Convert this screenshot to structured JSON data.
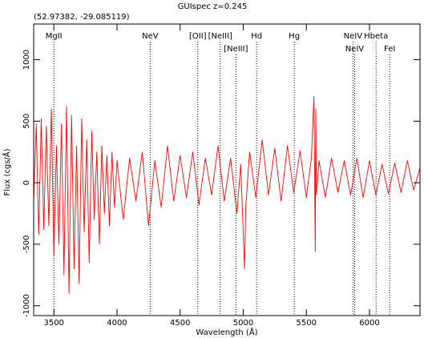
{
  "chart_data": {
    "type": "line",
    "title": "GUIspec z=0.245",
    "subtitle": "(52.97382, -29.085119)",
    "xlabel": "Wavelength (Å)",
    "ylabel": "Flux (cgs/Å)",
    "xlim": [
      3340,
      6400
    ],
    "ylim": [
      -1080,
      1290
    ],
    "x_ticks": [
      3500,
      4000,
      4500,
      5000,
      5500,
      6000
    ],
    "y_ticks": [
      -1000,
      -500,
      0,
      500,
      1000
    ],
    "series_color": "#ff0000",
    "series": [
      {
        "x": [
          3340,
          3360,
          3380,
          3400,
          3420,
          3440,
          3460,
          3480,
          3500,
          3520,
          3540,
          3560,
          3580,
          3600,
          3620,
          3640,
          3660,
          3680,
          3700,
          3720,
          3740,
          3760,
          3780,
          3800,
          3820,
          3840,
          3860,
          3880,
          3900,
          3920,
          3940,
          3960,
          3980,
          4000,
          4050,
          4100,
          4150,
          4200,
          4250,
          4300,
          4350,
          4400,
          4450,
          4500,
          4550,
          4600,
          4650,
          4700,
          4750,
          4800,
          4850,
          4900,
          4950,
          4980,
          5000,
          5010,
          5020,
          5050,
          5100,
          5150,
          5200,
          5250,
          5300,
          5350,
          5400,
          5450,
          5500,
          5540,
          5560,
          5570,
          5575,
          5580,
          5600,
          5650,
          5700,
          5750,
          5800,
          5850,
          5900,
          5950,
          6000,
          6050,
          6100,
          6150,
          6200,
          6250,
          6300,
          6350,
          6400
        ],
        "y": [
          -150,
          480,
          -420,
          520,
          -380,
          460,
          -350,
          600,
          -600,
          300,
          -500,
          480,
          -750,
          620,
          -900,
          550,
          -700,
          300,
          -820,
          520,
          -400,
          350,
          -650,
          420,
          -300,
          250,
          -500,
          300,
          -250,
          220,
          -350,
          250,
          -200,
          180,
          -300,
          200,
          -150,
          250,
          -350,
          180,
          -200,
          300,
          -150,
          220,
          -120,
          250,
          -180,
          200,
          -100,
          300,
          -150,
          200,
          -250,
          150,
          -400,
          -700,
          -200,
          250,
          -120,
          350,
          -100,
          280,
          -150,
          300,
          -80,
          260,
          -120,
          200,
          700,
          -560,
          600,
          -100,
          180,
          -120,
          200,
          -80,
          180,
          -100,
          200,
          -120,
          180,
          -100,
          150,
          -90,
          160,
          -80,
          180,
          -60,
          120
        ]
      }
    ],
    "annotations": [
      {
        "label": "MgII",
        "x": 3500,
        "row": 1
      },
      {
        "label": "NeV",
        "x": 4263,
        "row": 1
      },
      {
        "label": "[OII]",
        "x": 4640,
        "row": 1
      },
      {
        "label": "[NeIII]",
        "x": 4818,
        "row": 1
      },
      {
        "label": "[NeIII]",
        "x": 4942,
        "row": 2
      },
      {
        "label": "Hd",
        "x": 5106,
        "row": 1
      },
      {
        "label": "Hg",
        "x": 5404,
        "row": 1
      },
      {
        "label": "NeIV",
        "x": 5869,
        "row": 1
      },
      {
        "label": "NeIV",
        "x": 5882,
        "row": 2
      },
      {
        "label": "Hbeta",
        "x": 6052,
        "row": 1
      },
      {
        "label": "FeI",
        "x": 6160,
        "row": 2
      }
    ]
  }
}
